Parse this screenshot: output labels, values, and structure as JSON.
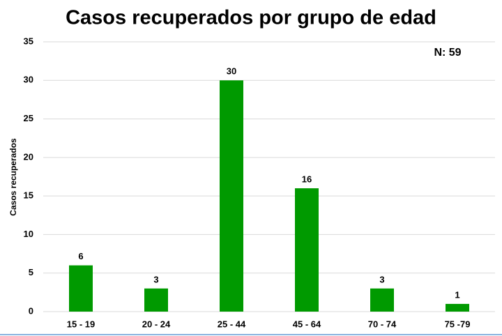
{
  "chart_data": {
    "type": "bar",
    "title": "Casos recuperados por grupo de edad",
    "annotation": "N: 59",
    "y_label": "Casos recuperados",
    "categories": [
      "15 - 19",
      "20 - 24",
      "25 - 44",
      "45 - 64",
      "70 - 74",
      "75 -79"
    ],
    "values": [
      6,
      3,
      30,
      16,
      3,
      1
    ],
    "color": "#009a00",
    "ylim": [
      0,
      35
    ],
    "yticks": [
      0,
      5,
      10,
      15,
      20,
      25,
      30,
      35
    ],
    "grid": true
  }
}
